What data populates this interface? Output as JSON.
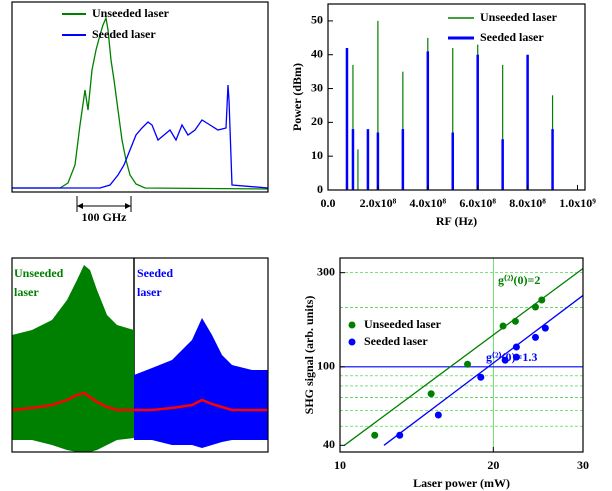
{
  "chart_data": [
    {
      "type": "line",
      "xlim": [
        0,
        256
      ],
      "ylim": [
        0,
        190
      ],
      "annotations": [
        "100 GHz"
      ],
      "series": [
        {
          "name": "Unseeded laser",
          "color": "#008000",
          "x": [
            0,
            48,
            56,
            63,
            68,
            73,
            76,
            80,
            84,
            88,
            91,
            94,
            96,
            99,
            102,
            106,
            110,
            114,
            118,
            124,
            133,
            256
          ],
          "values": [
            4,
            4,
            9,
            27,
            67,
            102,
            82,
            122,
            142,
            157,
            167,
            174,
            162,
            132,
            112,
            82,
            52,
            32,
            17,
            8,
            4,
            3
          ]
        },
        {
          "name": "Seeded laser",
          "color": "#0000ff",
          "x": [
            0,
            88,
            98,
            106,
            112,
            118,
            124,
            130,
            136,
            140,
            146,
            152,
            158,
            164,
            170,
            176,
            183,
            190,
            198,
            206,
            214,
            216,
            217,
            220,
            256
          ],
          "values": [
            4,
            4,
            7,
            17,
            27,
            42,
            57,
            64,
            70,
            67,
            52,
            57,
            62,
            52,
            67,
            57,
            62,
            72,
            67,
            62,
            64,
            107,
            92,
            7,
            4
          ]
        }
      ]
    },
    {
      "type": "stem",
      "xlabel": "RF (Hz)",
      "ylabel": "Power (dBm)",
      "xlim": [
        0,
        1030000000
      ],
      "ylim": [
        0,
        55
      ],
      "xticks": [
        {
          "value": 0,
          "label": "0.0"
        },
        {
          "value": 200000000,
          "label": "2.0x10⁸"
        },
        {
          "value": 400000000,
          "label": "4.0x10⁸"
        },
        {
          "value": 600000000,
          "label": "6.0x10⁸"
        },
        {
          "value": 800000000,
          "label": "8.0x10⁸"
        },
        {
          "value": 1000000000,
          "label": "1.0x10⁹"
        }
      ],
      "yticks": [
        0,
        10,
        20,
        30,
        40,
        50
      ],
      "series": [
        {
          "name": "Unseeded laser",
          "color": "#008000",
          "x": [
            100000000,
            120000000,
            160000000,
            200000000,
            300000000,
            400000000,
            500000000,
            600000000,
            700000000,
            900000000
          ],
          "values": [
            37,
            12,
            17,
            50,
            35,
            45,
            42,
            43,
            37,
            28
          ]
        },
        {
          "name": "Seeded laser",
          "color": "#0000ff",
          "x": [
            76000000,
            100000000,
            160000000,
            200000000,
            300000000,
            400000000,
            500000000,
            600000000,
            700000000,
            800000000,
            900000000
          ],
          "values": [
            42,
            18,
            18,
            17,
            18,
            41,
            17,
            40,
            15,
            40,
            18
          ]
        }
      ]
    },
    {
      "type": "band",
      "xlim": [
        0,
        256
      ],
      "ylim": [
        0,
        194
      ],
      "series": [
        {
          "name": "Unseeded laser",
          "color": "#008000",
          "mean_color": "#ff0000",
          "x": [
            0,
            20,
            40,
            55,
            65,
            72,
            78,
            85,
            95,
            105,
            122
          ],
          "upper": [
            117,
            122,
            132,
            152,
            172,
            187,
            182,
            162,
            137,
            127,
            122
          ],
          "lower": [
            12,
            12,
            7,
            2,
            0,
            0,
            0,
            2,
            7,
            12,
            14
          ],
          "mean": [
            42,
            44,
            47,
            52,
            57,
            59,
            55,
            50,
            45,
            42,
            42
          ]
        },
        {
          "name": "Seeded laser",
          "color": "#0000ff",
          "mean_color": "#ff0000",
          "x": [
            122,
            140,
            160,
            180,
            190,
            200,
            210,
            220,
            240,
            256
          ],
          "upper": [
            77,
            84,
            92,
            112,
            134,
            117,
            97,
            87,
            82,
            82
          ],
          "lower": [
            12,
            12,
            7,
            7,
            4,
            7,
            10,
            12,
            12,
            12
          ],
          "mean": [
            42,
            42,
            44,
            47,
            52,
            48,
            45,
            42,
            42,
            42
          ]
        }
      ]
    },
    {
      "type": "scatter",
      "xlabel": "Laser power (mW)",
      "ylabel": "SHG signal (arb. units)",
      "log_x": true,
      "log_y": true,
      "xlim": [
        10,
        30
      ],
      "ylim": [
        37,
        356
      ],
      "xticks": [
        10,
        20,
        30
      ],
      "yticks": [
        40,
        100,
        300
      ],
      "grid_color": "#33cc33",
      "grid_y": [
        50,
        60,
        70,
        80,
        90,
        200,
        300
      ],
      "grid_x": [
        20
      ],
      "hline": 100,
      "hline_color": "#0000ff",
      "series": [
        {
          "name": "Unseeded laser",
          "color": "#008000",
          "x": [
            11.7,
            15.1,
            17.8,
            20.9,
            22.1,
            24.2,
            24.9
          ],
          "values": [
            45,
            73,
            103,
            161,
            170,
            201,
            218
          ]
        },
        {
          "name": "Seeded laser",
          "color": "#0000ff",
          "x": [
            13.1,
            15.6,
            18.9,
            21.1,
            22.2,
            22.2,
            24.2,
            25.3
          ],
          "values": [
            45,
            57,
            88.5,
            108,
            112,
            126,
            141,
            157
          ]
        }
      ],
      "fits": [
        {
          "color": "#008000",
          "x": [
            10.2,
            30
          ],
          "values": [
            40,
            315
          ]
        },
        {
          "color": "#0000ff",
          "x": [
            12.2,
            30
          ],
          "values": [
            40,
            230
          ]
        }
      ],
      "annotations": [
        {
          "text": "g⁽²⁾(0)=2",
          "color": "#008000"
        },
        {
          "text": "g⁽²⁾(0)=1.3",
          "color": "#0000ff"
        }
      ]
    }
  ]
}
